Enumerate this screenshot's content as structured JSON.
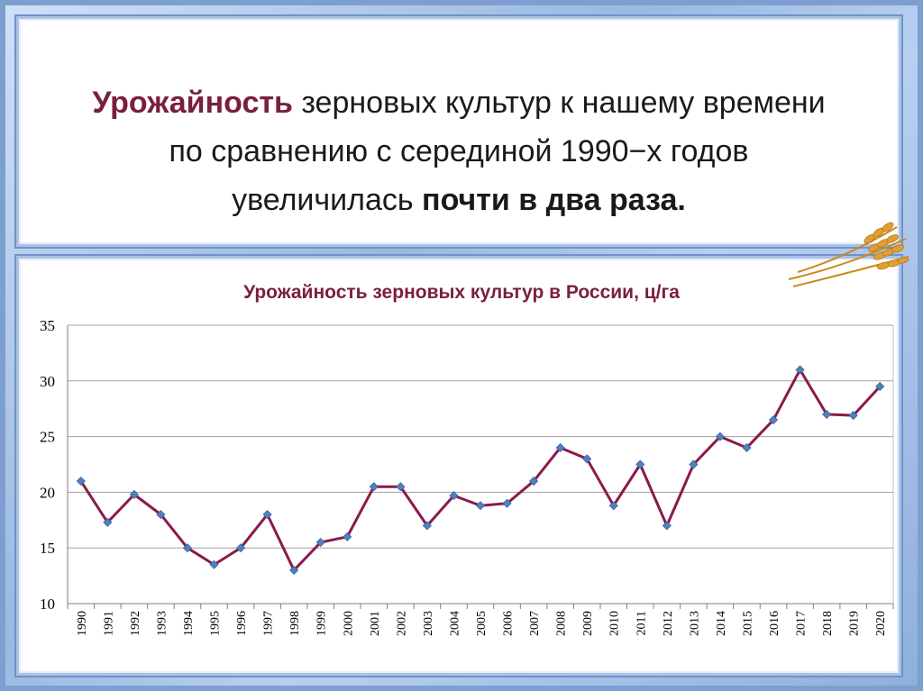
{
  "headline": {
    "line1_accent": "Урожайность",
    "line1_rest": " зерновых культур к нашему времени",
    "line2": "по сравнению с серединой 1990−х годов",
    "line3_start": "увеличилась ",
    "line3_bold": "почти в два раза."
  },
  "decoration": {
    "icon": "wheat-ears-icon"
  },
  "colors": {
    "line": "#8b1a4a",
    "marker": "#4f81bd",
    "accent": "#7a1f3d",
    "grid": "#a0a0a0"
  },
  "chart_data": {
    "type": "line",
    "title": "Урожайность зерновых культур в России, ц/га",
    "xlabel": "",
    "ylabel": "",
    "ylim": [
      10,
      35
    ],
    "yticks": [
      10,
      15,
      20,
      25,
      30,
      35
    ],
    "grid": true,
    "legend": "none",
    "categories": [
      "1990",
      "1991",
      "1992",
      "1993",
      "1994",
      "1995",
      "1996",
      "1997",
      "1998",
      "1999",
      "2000",
      "2001",
      "2002",
      "2003",
      "2004",
      "2005",
      "2006",
      "2007",
      "2008",
      "2009",
      "2010",
      "2011",
      "2012",
      "2013",
      "2014",
      "2015",
      "2016",
      "2017",
      "2018",
      "2019",
      "2020"
    ],
    "series": [
      {
        "values": [
          21.0,
          17.3,
          19.8,
          18.0,
          15.0,
          13.5,
          15.0,
          18.0,
          13.0,
          15.5,
          16.0,
          20.5,
          20.5,
          17.0,
          19.7,
          18.8,
          19.0,
          21.0,
          24.0,
          23.0,
          18.8,
          22.5,
          17.0,
          22.5,
          25.0,
          24.0,
          26.5,
          31.0,
          27.0,
          26.9,
          29.5
        ]
      }
    ]
  }
}
